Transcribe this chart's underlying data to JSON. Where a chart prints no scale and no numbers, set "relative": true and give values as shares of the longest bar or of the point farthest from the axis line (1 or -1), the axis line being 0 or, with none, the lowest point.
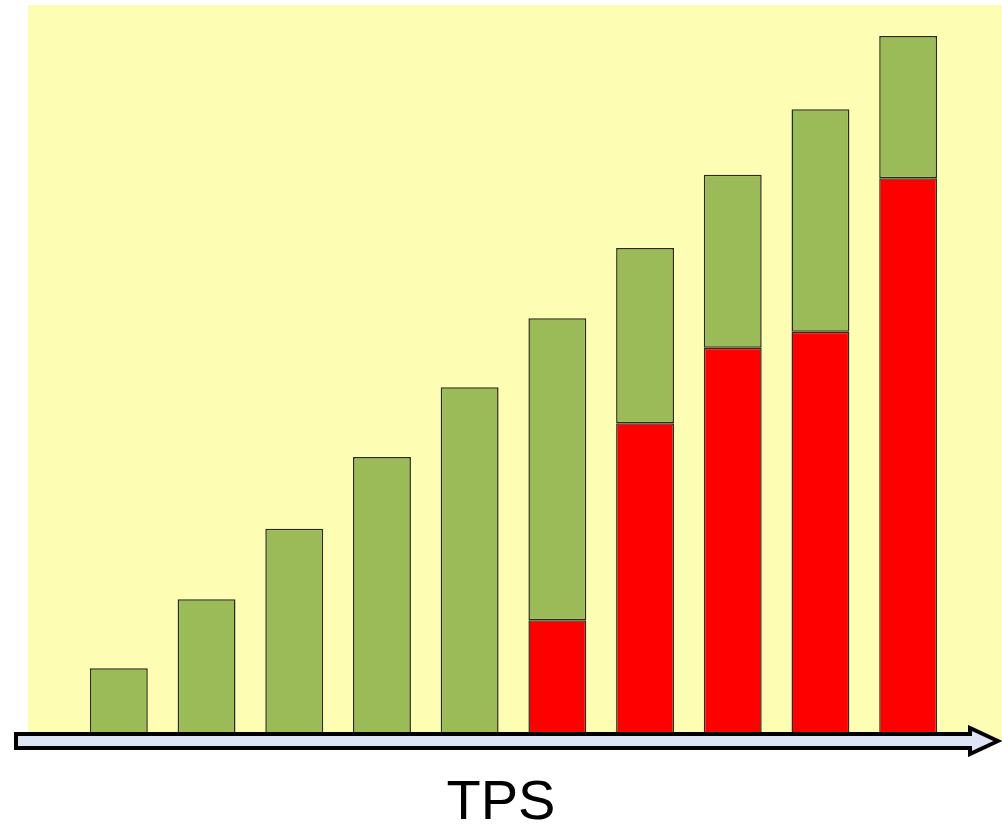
{
  "chart_data": {
    "type": "bar",
    "stacked": true,
    "relative": true,
    "xlabel": "TPS",
    "categories": [
      null,
      null,
      null,
      null,
      null,
      null,
      null,
      null,
      null,
      null
    ],
    "series": [
      {
        "color": "#ff0000",
        "values": [
          0,
          0,
          0,
          0,
          0,
          0.17,
          0.45,
          0.557,
          0.58,
          0.798
        ]
      },
      {
        "color": "#9bbb59",
        "values": [
          0.102,
          0.2,
          0.3,
          0.402,
          0.501,
          0.429,
          0.249,
          0.246,
          0.316,
          0.202
        ]
      }
    ]
  }
}
